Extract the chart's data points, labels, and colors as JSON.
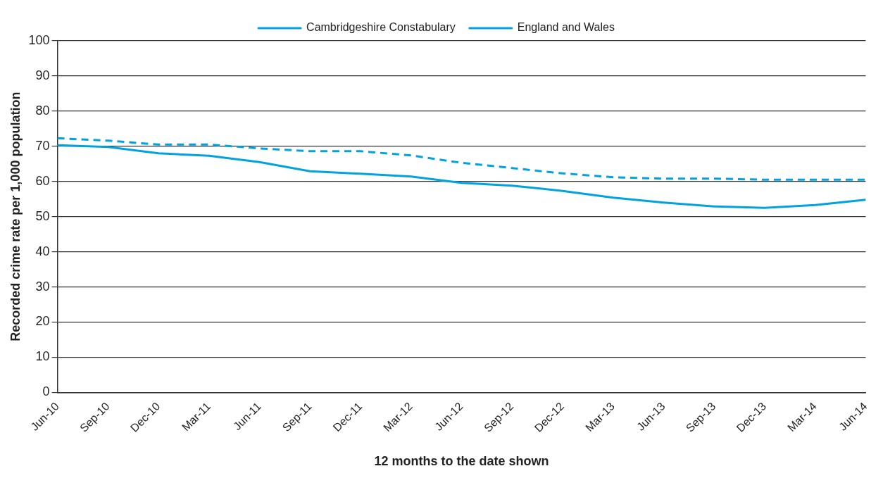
{
  "chart_data": {
    "type": "line",
    "xlabel": "12 months to the date shown",
    "ylabel": "Recorded crime rate per 1,000 population",
    "categories": [
      "Jun-10",
      "Sep-10",
      "Dec-10",
      "Mar-11",
      "Jun-11",
      "Sep-11",
      "Dec-11",
      "Mar-12",
      "Jun-12",
      "Sep-12",
      "Dec-12",
      "Mar-13",
      "Jun-13",
      "Sep-13",
      "Dec-13",
      "Mar-14",
      "Jun-14"
    ],
    "series": [
      {
        "name": "Cambridgeshire Constabulary",
        "color": "#00a3e0",
        "line_style": "solid",
        "values": [
          70.3,
          69.8,
          68,
          67.3,
          65.5,
          62.9,
          62.2,
          61.4,
          59.6,
          58.8,
          57.3,
          55.4,
          54,
          52.9,
          52.5,
          53.3,
          54.8
        ]
      },
      {
        "name": "England and Wales",
        "color": "#00a3e0",
        "line_style": "dashed",
        "values": [
          72.3,
          71.6,
          70.5,
          70.5,
          69.4,
          68.6,
          68.6,
          67.4,
          65.3,
          63.8,
          62.3,
          61.2,
          60.8,
          60.8,
          60.5,
          60.5,
          60.5
        ]
      }
    ],
    "ylim": [
      0,
      100
    ],
    "yticks": [
      0,
      10,
      20,
      30,
      40,
      50,
      60,
      70,
      80,
      90,
      100
    ],
    "grid": "y",
    "legend": "top",
    "marker": "none"
  }
}
